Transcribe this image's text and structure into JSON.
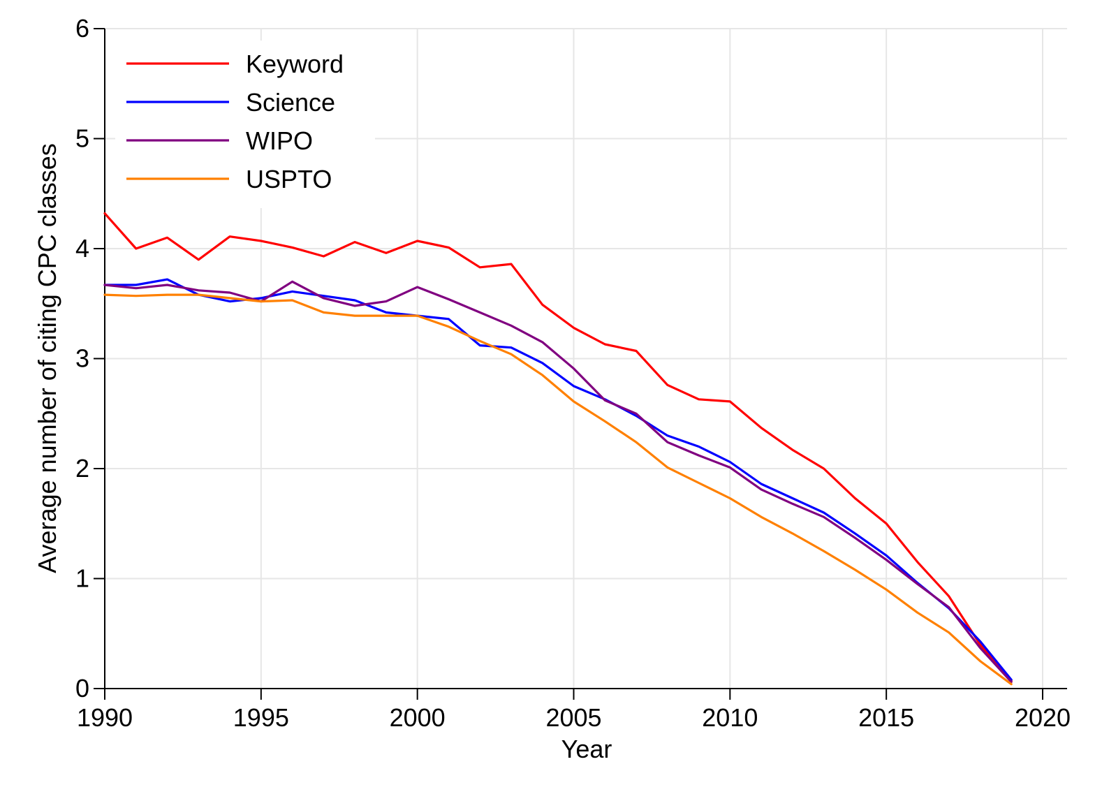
{
  "chart_data": {
    "type": "line",
    "title": "",
    "xlabel": "Year",
    "ylabel": "Average number of citing CPC classes",
    "xlim": [
      1990,
      2020
    ],
    "ylim": [
      0,
      6
    ],
    "xticks": [
      "1990",
      "1995",
      "2000",
      "2005",
      "2010",
      "2015",
      "2020"
    ],
    "yticks": [
      "0",
      "1",
      "2",
      "3",
      "4",
      "5",
      "6"
    ],
    "grid": true,
    "legend_position": "top-left",
    "x": [
      1990,
      1991,
      1992,
      1993,
      1994,
      1995,
      1996,
      1997,
      1998,
      1999,
      2000,
      2001,
      2002,
      2003,
      2004,
      2005,
      2006,
      2007,
      2008,
      2009,
      2010,
      2011,
      2012,
      2013,
      2014,
      2015,
      2016,
      2017,
      2018,
      2019
    ],
    "series": [
      {
        "name": "Keyword",
        "color": "#ff0000",
        "values": [
          4.32,
          4.0,
          4.1,
          3.9,
          4.11,
          4.07,
          4.01,
          3.93,
          4.06,
          3.96,
          4.07,
          4.01,
          3.83,
          3.86,
          3.49,
          3.28,
          3.13,
          3.07,
          2.76,
          2.63,
          2.61,
          2.37,
          2.17,
          2.0,
          1.73,
          1.5,
          1.15,
          0.84,
          0.4,
          0.07
        ]
      },
      {
        "name": "Science",
        "color": "#0000ff",
        "values": [
          3.67,
          3.67,
          3.72,
          3.58,
          3.52,
          3.55,
          3.61,
          3.57,
          3.53,
          3.42,
          3.39,
          3.36,
          3.12,
          3.1,
          2.96,
          2.75,
          2.63,
          2.48,
          2.3,
          2.2,
          2.06,
          1.86,
          1.73,
          1.6,
          1.41,
          1.21,
          0.96,
          0.73,
          0.43,
          0.08
        ]
      },
      {
        "name": "WIPO",
        "color": "#800080",
        "values": [
          3.67,
          3.64,
          3.67,
          3.62,
          3.6,
          3.52,
          3.7,
          3.55,
          3.48,
          3.52,
          3.65,
          3.54,
          3.42,
          3.3,
          3.15,
          2.91,
          2.62,
          2.5,
          2.24,
          2.12,
          2.01,
          1.81,
          1.68,
          1.56,
          1.37,
          1.17,
          0.95,
          0.74,
          0.37,
          0.06
        ]
      },
      {
        "name": "USPTO",
        "color": "#ff8000",
        "values": [
          3.58,
          3.57,
          3.58,
          3.58,
          3.55,
          3.52,
          3.53,
          3.42,
          3.39,
          3.39,
          3.39,
          3.29,
          3.16,
          3.04,
          2.85,
          2.61,
          2.43,
          2.24,
          2.01,
          1.87,
          1.73,
          1.56,
          1.41,
          1.25,
          1.08,
          0.9,
          0.69,
          0.51,
          0.25,
          0.04
        ]
      }
    ]
  }
}
